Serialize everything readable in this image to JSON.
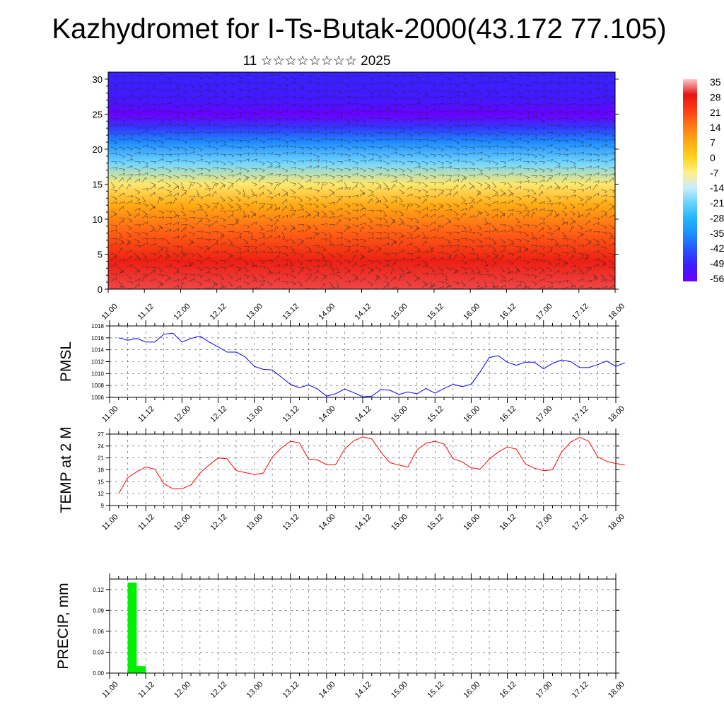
{
  "title": "Kazhydromet for I-Ts-Butak-2000(43.172 77.105)",
  "subtitle": "11 ☆☆☆☆☆☆☆☆ 2025",
  "time_ticks": [
    "11.00",
    "11.12",
    "12.00",
    "12.12",
    "13.00",
    "13.12",
    "14.00",
    "14.12",
    "15.00",
    "15.12",
    "16.00",
    "16.12",
    "17.00",
    "17.12",
    "18.00"
  ],
  "colorbar": {
    "labels": [
      "35",
      "28",
      "21",
      "14",
      "7",
      "0",
      "-7",
      "-14",
      "-21",
      "-28",
      "-35",
      "-42",
      "-49",
      "-56"
    ]
  },
  "chart_data": [
    {
      "type": "heatmap",
      "name": "temperature-wind-cross-section",
      "xlabel": "",
      "ylabel": "",
      "y_ticks": [
        "0",
        "5",
        "10",
        "15",
        "20",
        "25",
        "30"
      ],
      "ylim": [
        0,
        31
      ],
      "x": [
        "11.00",
        "11.12",
        "12.00",
        "12.12",
        "13.00",
        "13.12",
        "14.00",
        "14.12",
        "15.00",
        "15.12",
        "16.00",
        "16.12",
        "17.00",
        "17.12",
        "18.00"
      ],
      "color_scale": [
        -56,
        35
      ],
      "temperature_profile": {
        "heights_km": [
          0,
          4,
          8,
          12,
          15,
          18,
          21,
          23,
          25,
          27,
          31
        ],
        "values": [
          30,
          26,
          17,
          7,
          -5,
          -20,
          -35,
          -45,
          -56,
          -50,
          -48
        ]
      },
      "overlay": "wind barbs"
    },
    {
      "type": "line",
      "ylabel": "PMSL",
      "y_ticks": [
        "1006",
        "1008",
        "1010",
        "1012",
        "1014",
        "1016",
        "1018"
      ],
      "ylim": [
        1006,
        1018
      ],
      "x_step_hours": 3,
      "series": [
        {
          "color": "#0000ff",
          "values": [
            1016.0,
            1015.6,
            1015.9,
            1015.3,
            1015.3,
            1016.6,
            1016.8,
            1015.3,
            1015.9,
            1016.3,
            1015.3,
            1014.5,
            1013.6,
            1013.6,
            1012.8,
            1011.2,
            1010.7,
            1010.6,
            1009.4,
            1008.2,
            1007.6,
            1008.1,
            1007.4,
            1006.2,
            1006.6,
            1007.4,
            1006.8,
            1006.1,
            1006.2,
            1007.3,
            1007.2,
            1006.5,
            1006.9,
            1006.6,
            1007.5,
            1006.7,
            1007.5,
            1008.2,
            1007.8,
            1008.2,
            1010.3,
            1012.7,
            1013.0,
            1011.9,
            1011.4,
            1011.9,
            1011.9,
            1010.8,
            1011.7,
            1012.3,
            1012.0,
            1011.0,
            1011.0,
            1011.5,
            1012.1,
            1011.2,
            1011.8
          ]
        }
      ]
    },
    {
      "type": "line",
      "ylabel": "TEMP at 2 M",
      "y_ticks": [
        "9",
        "12",
        "15",
        "18",
        "21",
        "24",
        "27"
      ],
      "ylim": [
        9,
        27
      ],
      "x_step_hours": 3,
      "series": [
        {
          "color": "#ff0000",
          "values": [
            12.0,
            16.0,
            17.5,
            18.7,
            18.2,
            14.5,
            13.2,
            13.2,
            14.2,
            17.2,
            19.2,
            21.0,
            20.8,
            17.8,
            17.3,
            16.8,
            17.2,
            21.2,
            23.5,
            25.2,
            24.8,
            20.7,
            20.5,
            19.3,
            19.3,
            23.2,
            25.3,
            26.3,
            25.8,
            22.5,
            19.8,
            19.2,
            18.7,
            23.0,
            24.7,
            25.2,
            24.5,
            20.8,
            20.0,
            18.5,
            18.2,
            20.7,
            22.5,
            23.8,
            23.2,
            19.5,
            18.4,
            17.8,
            18.0,
            22.5,
            25.0,
            26.2,
            25.2,
            21.3,
            20.1,
            19.6,
            19.2
          ]
        }
      ]
    },
    {
      "type": "bar",
      "ylabel": "PRECIP, mm",
      "y_ticks": [
        "0.00",
        "0.03",
        "0.06",
        "0.09",
        "0.12"
      ],
      "ylim": [
        0,
        0.135
      ],
      "bar_color": "#00ee00",
      "bar_slots_hours": [
        6,
        9,
        12
      ],
      "values": [
        0.13,
        0.01,
        0.0
      ]
    }
  ]
}
